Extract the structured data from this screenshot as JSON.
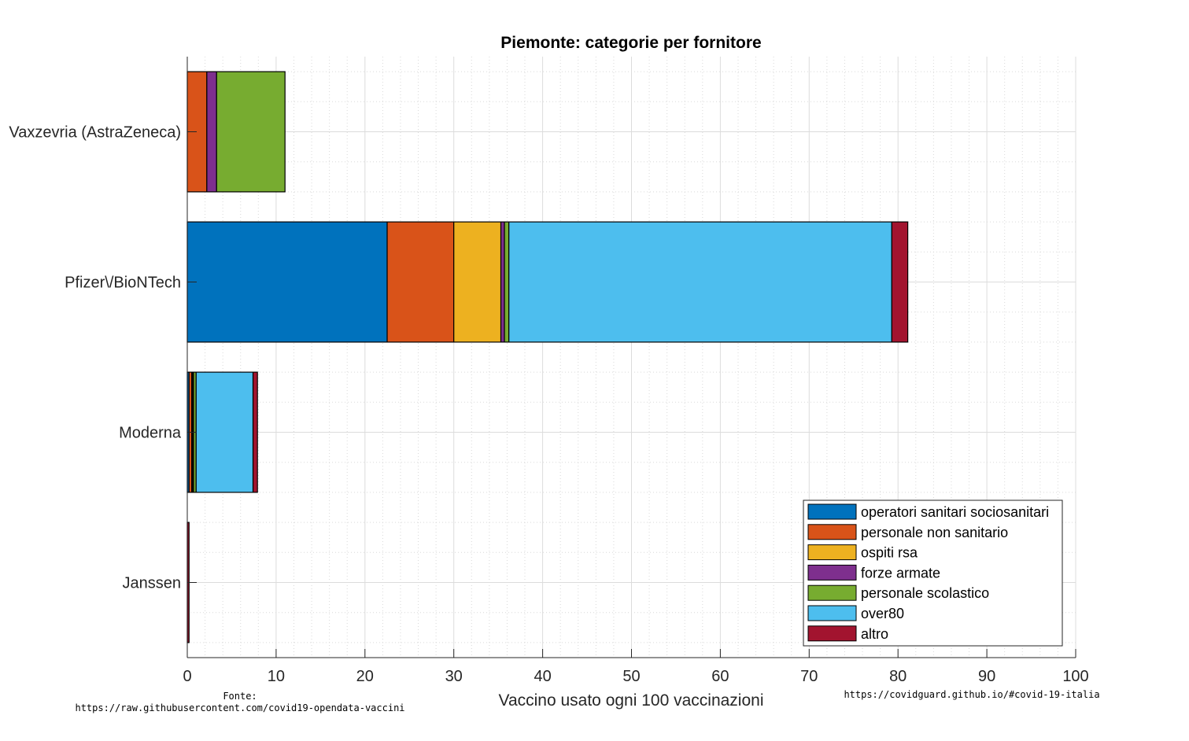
{
  "chart_data": {
    "type": "bar",
    "orientation": "horizontal",
    "stacked": true,
    "title": "Piemonte: categorie per fornitore",
    "xlabel": "Vaccino usato ogni 100 vaccinazioni",
    "ylabel": "",
    "xlim": [
      0,
      100
    ],
    "xticks": [
      0,
      10,
      20,
      30,
      40,
      50,
      60,
      70,
      80,
      90,
      100
    ],
    "grid": true,
    "minor_grid": true,
    "legend_position": "bottom-right",
    "categories": [
      "Vaxzevria (AstraZeneca)",
      "Pfizer\\/BioNTech",
      "Moderna",
      "Janssen"
    ],
    "series": [
      {
        "name": "operatori sanitari sociosanitari",
        "color": "#0072BD",
        "values": [
          0.0,
          22.5,
          0.2,
          0.0
        ]
      },
      {
        "name": "personale non sanitario",
        "color": "#D95319",
        "values": [
          2.2,
          7.5,
          0.3,
          0.0
        ]
      },
      {
        "name": "ospiti rsa",
        "color": "#EDB120",
        "values": [
          0.0,
          5.3,
          0.1,
          0.0
        ]
      },
      {
        "name": "forze armate",
        "color": "#7E2F8E",
        "values": [
          1.1,
          0.4,
          0.1,
          0.0
        ]
      },
      {
        "name": "personale scolastico",
        "color": "#77AC30",
        "values": [
          7.7,
          0.5,
          0.3,
          0.0
        ]
      },
      {
        "name": "over80",
        "color": "#4DBEEE",
        "values": [
          0.0,
          43.1,
          6.4,
          0.0
        ]
      },
      {
        "name": "altro",
        "color": "#A2142F",
        "values": [
          0.0,
          1.8,
          0.5,
          0.2
        ]
      }
    ]
  },
  "footer": {
    "source_label": "Fonte:",
    "source_url": "https://raw.githubusercontent.com/covid19-opendata-vaccini",
    "site_url": "https://covidguard.github.io/#covid-19-italia"
  }
}
